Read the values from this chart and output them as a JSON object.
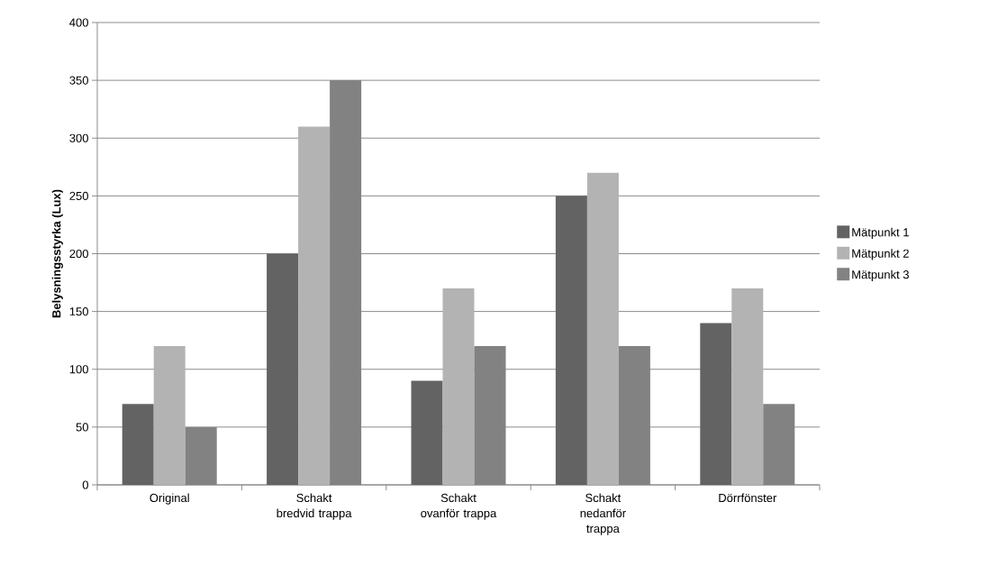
{
  "chart_data": {
    "type": "bar",
    "ylabel": "Belysningsstyrka (Lux)",
    "categories": [
      "Original",
      "Schakt bredvid trappa",
      "Schakt ovanför trappa",
      "Schakt nedanför trappa",
      "Dörrfönster"
    ],
    "series": [
      {
        "name": "Mätpunkt 1",
        "color": "#636363",
        "values": [
          70,
          200,
          90,
          250,
          140
        ]
      },
      {
        "name": "Mätpunkt 2",
        "color": "#b3b3b3",
        "values": [
          120,
          310,
          170,
          270,
          170
        ]
      },
      {
        "name": "Mätpunkt 3",
        "color": "#828282",
        "values": [
          50,
          350,
          120,
          120,
          70
        ]
      }
    ],
    "ylim": [
      0,
      400
    ],
    "yticks": [
      0,
      50,
      100,
      150,
      200,
      250,
      300,
      350,
      400
    ],
    "grid": "y",
    "legend": "right"
  }
}
